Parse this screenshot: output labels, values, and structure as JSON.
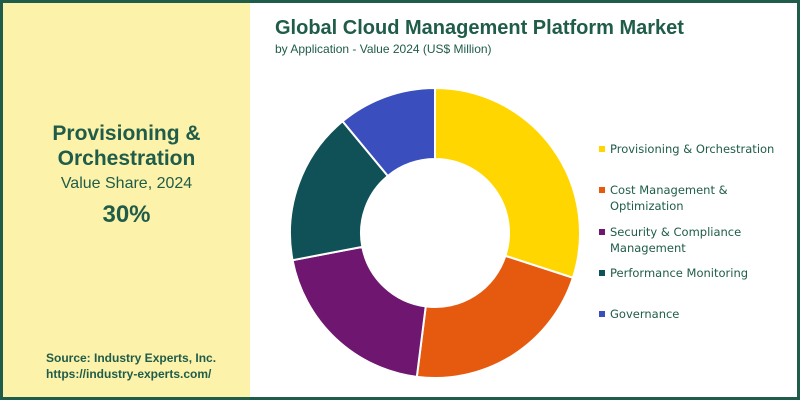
{
  "highlight": {
    "title_line1": "Provisioning &",
    "title_line2": "Orchestration",
    "subtitle": "Value Share, 2024",
    "value": "30%"
  },
  "source": {
    "line1": "Source: Industry Experts, Inc.",
    "line2": "https://industry-experts.com/"
  },
  "chart_data": {
    "type": "pie",
    "title": "Global Cloud Management Platform Market",
    "subtitle": "by Application - Value 2024 (US$ Million)",
    "categories": [
      "Provisioning & Orchestration",
      "Cost Management & Optimization",
      "Security & Compliance Management",
      "Performance Monitoring",
      "Governance"
    ],
    "values": [
      30,
      22,
      20,
      17,
      11
    ],
    "colors": [
      "#ffd600",
      "#e65a10",
      "#6e1670",
      "#0f5157",
      "#3a4fbd"
    ],
    "legend": {
      "placement": "right",
      "labels": [
        [
          "Provisioning & Orchestration"
        ],
        [
          "Cost Management &",
          "Optimization"
        ],
        [
          "Security & Compliance",
          "Management"
        ],
        [
          "Performance Monitoring"
        ],
        [
          "Governance"
        ]
      ]
    }
  }
}
